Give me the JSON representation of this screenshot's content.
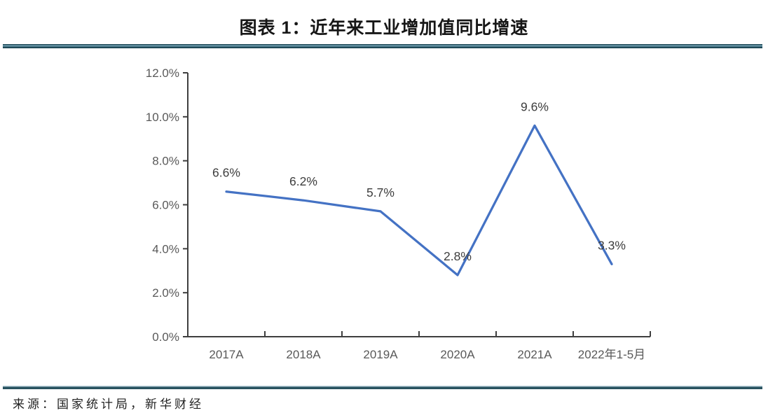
{
  "page": {
    "title": "图表 1：近年来工业增加值同比增速",
    "source": "来源：国家统计局，新华财经"
  },
  "colors": {
    "line": "#4472C4",
    "axis": "#3f3f3f",
    "axis_label": "#595959",
    "data_label": "#3d3d3d",
    "rule_dark": "#1f4a58",
    "rule_light": "#6f9fb0"
  },
  "chart_data": {
    "type": "line",
    "title": "图表 1：近年来工业增加值同比增速",
    "categories": [
      "2017A",
      "2018A",
      "2019A",
      "2020A",
      "2021A",
      "2022年1-5月"
    ],
    "values": [
      6.6,
      6.2,
      5.7,
      2.8,
      9.6,
      3.3
    ],
    "data_labels": [
      "6.6%",
      "6.2%",
      "5.7%",
      "2.8%",
      "9.6%",
      "3.3%"
    ],
    "y_ticks": [
      "0.0%",
      "2.0%",
      "4.0%",
      "6.0%",
      "8.0%",
      "10.0%",
      "12.0%"
    ],
    "ylim": [
      0,
      12
    ],
    "y_step": 2,
    "xlabel": "",
    "ylabel": "",
    "grid": false,
    "legend": "none",
    "source": "来源：国家统计局，新华财经"
  }
}
